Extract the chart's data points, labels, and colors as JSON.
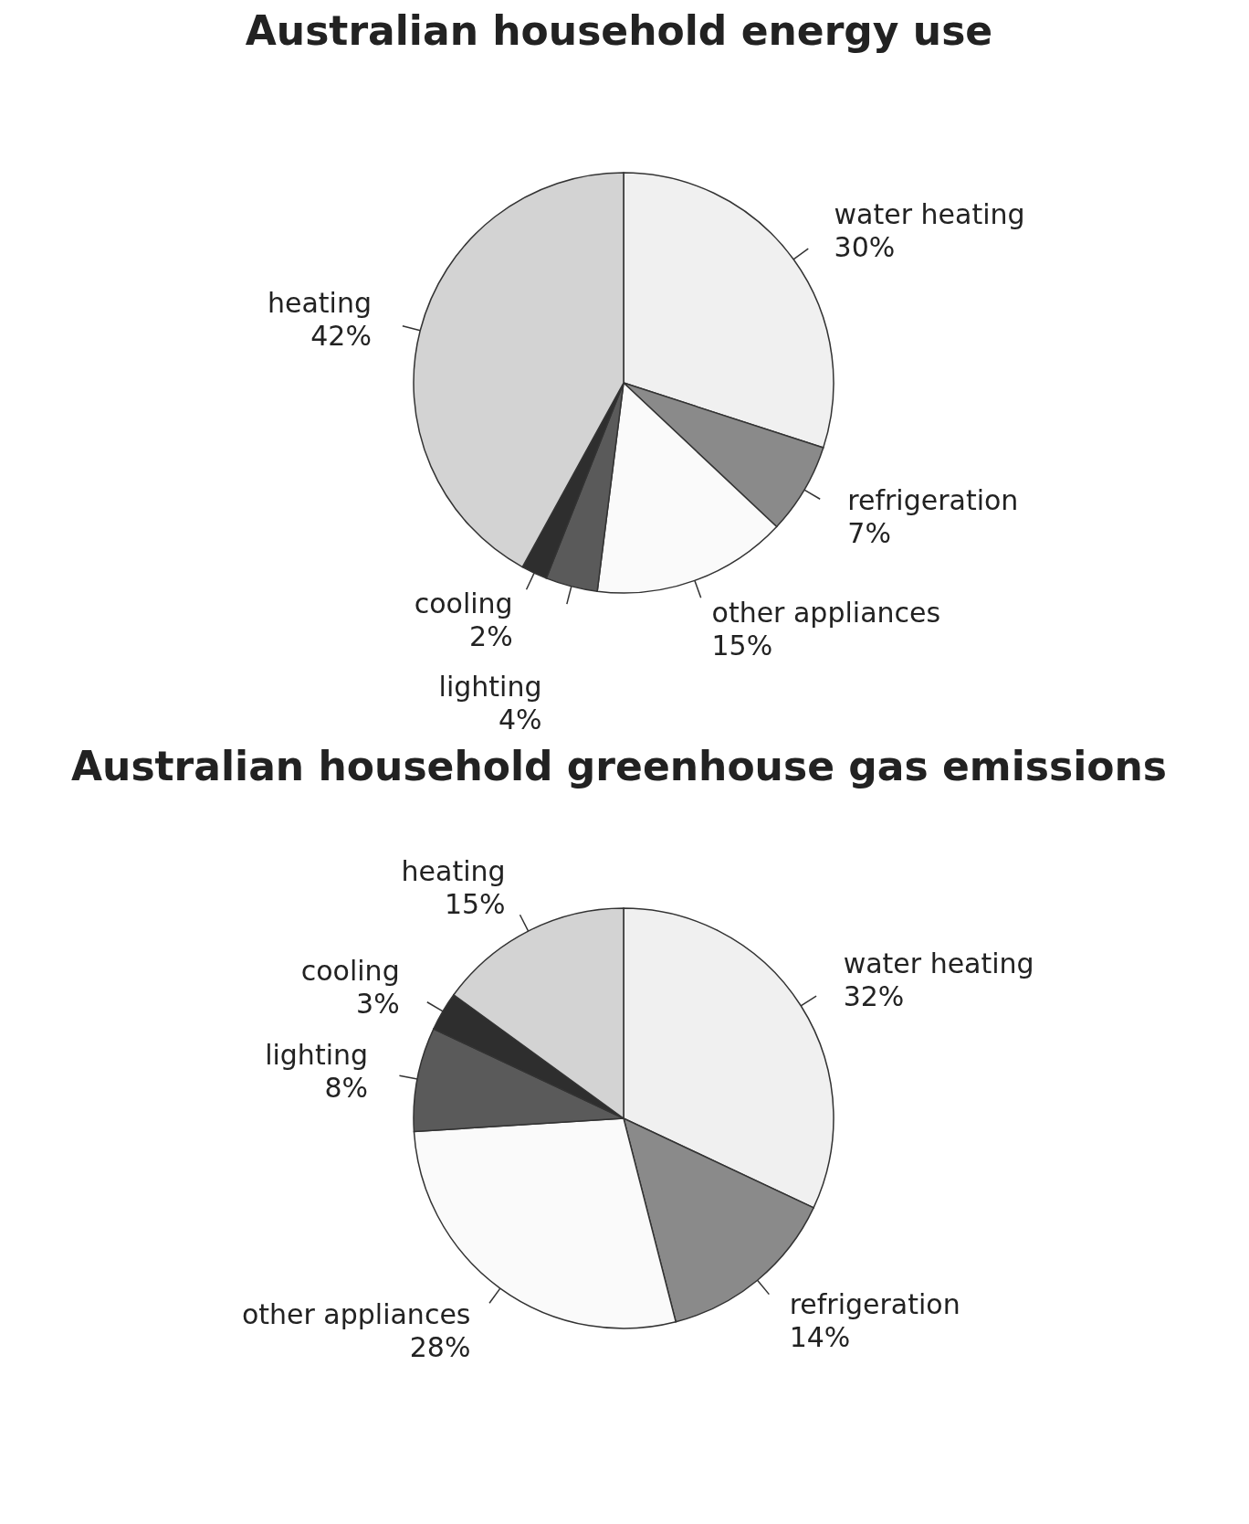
{
  "chart_data": [
    {
      "type": "pie",
      "title": "Australian household energy use",
      "categories": [
        "water heating",
        "refrigeration",
        "other appliances",
        "lighting",
        "cooling",
        "heating"
      ],
      "values": [
        30,
        7,
        15,
        4,
        2,
        42
      ],
      "value_labels": [
        "30%",
        "7%",
        "15%",
        "4%",
        "2%",
        "42%"
      ],
      "colors": [
        "#f0f0f0",
        "#8a8a8a",
        "#fafafa",
        "#5a5a5a",
        "#2e2e2e",
        "#d3d3d3"
      ]
    },
    {
      "type": "pie",
      "title": "Australian household greenhouse gas emissions",
      "categories": [
        "water heating",
        "refrigeration",
        "other appliances",
        "lighting",
        "cooling",
        "heating"
      ],
      "values": [
        32,
        14,
        28,
        8,
        3,
        15
      ],
      "value_labels": [
        "32%",
        "14%",
        "28%",
        "8%",
        "3%",
        "15%"
      ],
      "colors": [
        "#f0f0f0",
        "#8a8a8a",
        "#fafafa",
        "#5a5a5a",
        "#2e2e2e",
        "#d3d3d3"
      ]
    }
  ]
}
